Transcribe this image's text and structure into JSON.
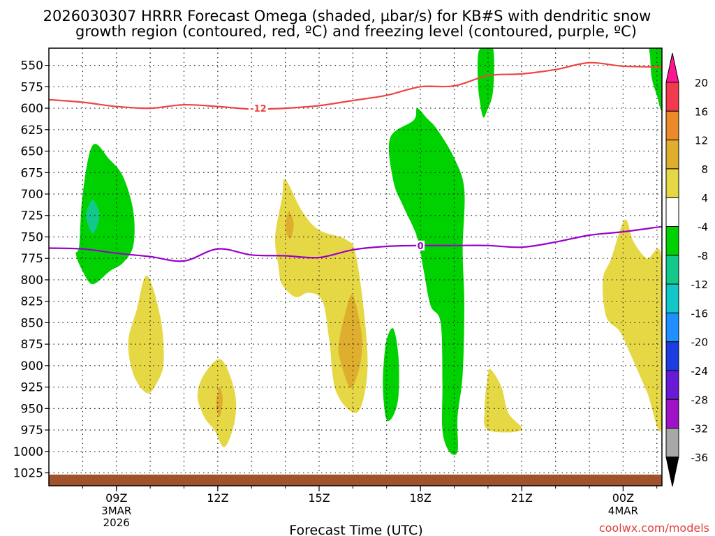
{
  "chart_data": {
    "type": "contour-time-height",
    "title_line1": "2026030307 HRRR Forecast Omega (shaded, µbar/s) for KB#S with dendritic snow",
    "title_line2": "growth region (contoured, red, ºC) and freezing level (contoured, purple, ºC)",
    "xlabel": "Forecast Time (UTC)",
    "watermark": "coolwx.com/models",
    "x_range_hours": [
      7.0,
      25.15
    ],
    "x_ticks": [
      {
        "hour": 9,
        "label": "09Z",
        "sub1": "3MAR",
        "sub2": "2026"
      },
      {
        "hour": 12,
        "label": "12Z",
        "sub1": "",
        "sub2": ""
      },
      {
        "hour": 15,
        "label": "15Z",
        "sub1": "",
        "sub2": ""
      },
      {
        "hour": 18,
        "label": "18Z",
        "sub1": "",
        "sub2": ""
      },
      {
        "hour": 21,
        "label": "21Z",
        "sub1": "",
        "sub2": ""
      },
      {
        "hour": 24,
        "label": "00Z",
        "sub1": "4MAR",
        "sub2": ""
      }
    ],
    "y_range_hpa": [
      530,
      1040
    ],
    "y_ticks": [
      550,
      575,
      600,
      625,
      650,
      675,
      700,
      725,
      750,
      775,
      800,
      825,
      850,
      875,
      900,
      925,
      950,
      975,
      1000,
      1025
    ],
    "y_tick_labels": [
      "550",
      "575",
      "600",
      "625",
      "650",
      "675",
      "700",
      "725",
      "750",
      "775",
      "800",
      "825",
      "850",
      "875",
      "900",
      "925",
      "950",
      "975",
      "1000",
      "1025"
    ],
    "colorbar": {
      "labels": [
        "20",
        "16",
        "12",
        "8",
        "4",
        "-4",
        "-8",
        "-12",
        "-16",
        "-20",
        "-24",
        "-28",
        "-32",
        "-36"
      ],
      "colors": [
        "#f23a4e",
        "#ec8a2a",
        "#dfae2e",
        "#e6d845",
        "#ffffff",
        "#00d100",
        "#12c88a",
        "#10c8c8",
        "#1e90ff",
        "#1c3ee0",
        "#6a1ad6",
        "#a012c8",
        "#a8a8a8"
      ],
      "top_arrow_color": "#ff1493",
      "bottom_arrow_color": "#000000"
    },
    "dgz_line": {
      "color": "#ee4444",
      "label": "-12",
      "label_at": {
        "hour": 13.2,
        "hpa": 600
      },
      "points": [
        [
          7.0,
          590
        ],
        [
          8.0,
          593
        ],
        [
          9.0,
          598
        ],
        [
          10.0,
          600
        ],
        [
          11.0,
          596
        ],
        [
          12.0,
          598
        ],
        [
          13.0,
          601
        ],
        [
          14.0,
          600
        ],
        [
          15.0,
          597
        ],
        [
          16.0,
          591
        ],
        [
          17.0,
          585
        ],
        [
          18.0,
          575
        ],
        [
          19.0,
          574
        ],
        [
          20.0,
          562
        ],
        [
          21.0,
          560
        ],
        [
          22.0,
          555
        ],
        [
          23.0,
          547
        ],
        [
          24.0,
          551
        ],
        [
          25.15,
          552
        ]
      ]
    },
    "freezing_line": {
      "color": "#9900cc",
      "label": "0",
      "label_at": {
        "hour": 18.0,
        "hpa": 760
      },
      "points": [
        [
          7.0,
          763
        ],
        [
          8.0,
          764
        ],
        [
          9.0,
          769
        ],
        [
          10.0,
          773
        ],
        [
          11.0,
          778
        ],
        [
          12.0,
          764
        ],
        [
          13.0,
          771
        ],
        [
          14.0,
          772
        ],
        [
          15.0,
          774
        ],
        [
          16.0,
          765
        ],
        [
          17.0,
          761
        ],
        [
          18.0,
          760
        ],
        [
          19.0,
          760
        ],
        [
          20.0,
          760
        ],
        [
          21.0,
          762
        ],
        [
          22.0,
          756
        ],
        [
          23.0,
          748
        ],
        [
          24.0,
          744
        ],
        [
          25.15,
          738
        ]
      ]
    },
    "omega_regions": [
      {
        "fill": "#00d100",
        "points": [
          [
            7.9,
            760
          ],
          [
            8.0,
            700
          ],
          [
            8.3,
            643
          ],
          [
            8.8,
            660
          ],
          [
            9.2,
            680
          ],
          [
            9.5,
            720
          ],
          [
            9.5,
            760
          ],
          [
            9.2,
            780
          ],
          [
            8.8,
            790
          ],
          [
            8.3,
            805
          ],
          [
            8.0,
            790
          ],
          [
            7.8,
            770
          ]
        ]
      },
      {
        "fill": "#12c88a",
        "points": [
          [
            8.1,
            725
          ],
          [
            8.3,
            707
          ],
          [
            8.5,
            725
          ],
          [
            8.3,
            746
          ]
        ]
      },
      {
        "fill": "#e6d845",
        "points": [
          [
            9.35,
            872
          ],
          [
            9.6,
            835
          ],
          [
            9.9,
            795
          ],
          [
            10.3,
            843
          ],
          [
            10.4,
            895
          ],
          [
            10.2,
            920
          ],
          [
            9.9,
            932
          ],
          [
            9.5,
            910
          ]
        ]
      },
      {
        "fill": "#e6d845",
        "points": [
          [
            11.4,
            935
          ],
          [
            11.6,
            910
          ],
          [
            12.1,
            893
          ],
          [
            12.5,
            930
          ],
          [
            12.5,
            965
          ],
          [
            12.2,
            995
          ],
          [
            11.9,
            975
          ],
          [
            11.6,
            960
          ]
        ]
      },
      {
        "fill": "#dfae2e",
        "points": [
          [
            11.95,
            945
          ],
          [
            12.05,
            925
          ],
          [
            12.15,
            940
          ],
          [
            12.05,
            960
          ]
        ]
      },
      {
        "fill": "#e6d845",
        "points": [
          [
            13.7,
            750
          ],
          [
            13.9,
            705
          ],
          [
            14.0,
            683
          ],
          [
            14.5,
            720
          ],
          [
            15.0,
            742
          ],
          [
            15.8,
            753
          ],
          [
            16.1,
            773
          ],
          [
            16.4,
            865
          ],
          [
            16.4,
            920
          ],
          [
            16.1,
            955
          ],
          [
            15.5,
            930
          ],
          [
            15.3,
            870
          ],
          [
            15.1,
            825
          ],
          [
            14.7,
            815
          ],
          [
            14.3,
            820
          ],
          [
            13.9,
            805
          ],
          [
            13.8,
            785
          ]
        ]
      },
      {
        "fill": "#dfae2e",
        "points": [
          [
            14.0,
            740
          ],
          [
            14.1,
            720
          ],
          [
            14.25,
            735
          ],
          [
            14.15,
            752
          ]
        ]
      },
      {
        "fill": "#dfae2e",
        "points": [
          [
            15.6,
            870
          ],
          [
            15.8,
            835
          ],
          [
            16.0,
            818
          ],
          [
            16.25,
            860
          ],
          [
            16.25,
            890
          ],
          [
            16.1,
            915
          ],
          [
            15.9,
            925
          ],
          [
            15.6,
            890
          ]
        ]
      },
      {
        "fill": "#00d100",
        "points": [
          [
            16.9,
            905
          ],
          [
            17.0,
            870
          ],
          [
            17.2,
            857
          ],
          [
            17.35,
            890
          ],
          [
            17.35,
            935
          ],
          [
            17.2,
            958
          ],
          [
            17.0,
            963
          ],
          [
            16.9,
            935
          ]
        ]
      },
      {
        "fill": "#00d100",
        "points": [
          [
            17.1,
            635
          ],
          [
            17.8,
            614
          ],
          [
            17.9,
            600
          ],
          [
            18.2,
            612
          ],
          [
            18.5,
            625
          ],
          [
            19.0,
            658
          ],
          [
            19.3,
            695
          ],
          [
            19.25,
            765
          ],
          [
            19.3,
            830
          ],
          [
            19.25,
            910
          ],
          [
            19.1,
            960
          ],
          [
            19.1,
            1000
          ],
          [
            18.85,
            1000
          ],
          [
            18.65,
            975
          ],
          [
            18.65,
            920
          ],
          [
            18.6,
            850
          ],
          [
            18.3,
            830
          ],
          [
            18.1,
            790
          ],
          [
            17.9,
            750
          ],
          [
            17.5,
            715
          ],
          [
            17.2,
            685
          ]
        ]
      },
      {
        "fill": "#00d100",
        "points": [
          [
            19.7,
            540
          ],
          [
            19.8,
            530
          ],
          [
            20.15,
            530
          ],
          [
            20.15,
            580
          ],
          [
            19.95,
            605
          ],
          [
            19.85,
            610
          ],
          [
            19.75,
            590
          ],
          [
            19.7,
            570
          ]
        ]
      },
      {
        "fill": "#e6d845",
        "points": [
          [
            19.9,
            950
          ],
          [
            20.0,
            910
          ],
          [
            20.1,
            905
          ],
          [
            20.4,
            925
          ],
          [
            20.6,
            955
          ],
          [
            21.0,
            975
          ],
          [
            20.0,
            975
          ]
        ]
      },
      {
        "fill": "#e6d845",
        "points": [
          [
            23.4,
            800
          ],
          [
            23.65,
            775
          ],
          [
            24.05,
            730
          ],
          [
            24.3,
            755
          ],
          [
            24.7,
            775
          ],
          [
            25.15,
            778
          ],
          [
            25.15,
            970
          ],
          [
            24.7,
            930
          ],
          [
            24.2,
            885
          ],
          [
            23.9,
            860
          ],
          [
            23.5,
            843
          ]
        ]
      },
      {
        "fill": "#00d100",
        "points": [
          [
            24.8,
            540
          ],
          [
            24.8,
            530
          ],
          [
            25.15,
            530
          ],
          [
            25.15,
            600
          ],
          [
            25.0,
            585
          ],
          [
            24.85,
            565
          ]
        ]
      }
    ],
    "terrain": {
      "fill": "#a0522d",
      "hpa": 1027
    }
  }
}
